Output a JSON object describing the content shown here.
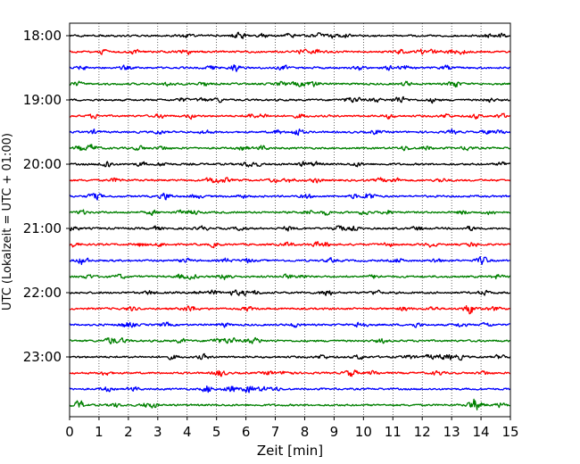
{
  "chart_data": {
    "type": "line",
    "subtype": "helicorder",
    "xlabel": "Zeit  [min]",
    "ylabel": "UTC (Lokalzeit = UTC + 01:00)",
    "xlim": [
      0,
      15
    ],
    "x_ticks": [
      "0",
      "1",
      "2",
      "3",
      "4",
      "5",
      "6",
      "7",
      "8",
      "9",
      "10",
      "11",
      "12",
      "13",
      "14",
      "15"
    ],
    "y_tick_labels": [
      "18:00",
      "19:00",
      "20:00",
      "21:00",
      "22:00",
      "23:00"
    ],
    "trace_start_times": [
      "18:00",
      "18:15",
      "18:30",
      "18:45",
      "19:00",
      "19:15",
      "19:30",
      "19:45",
      "20:00",
      "20:15",
      "20:30",
      "20:45",
      "21:00",
      "21:15",
      "21:30",
      "21:45",
      "22:00",
      "22:15",
      "22:30",
      "22:45",
      "23:00",
      "23:15",
      "23:30",
      "23:45"
    ],
    "trace_colors": [
      "#000000",
      "#ff0000",
      "#0000ff",
      "#008000"
    ],
    "grid": "vertical-dotted",
    "legend": "none"
  }
}
